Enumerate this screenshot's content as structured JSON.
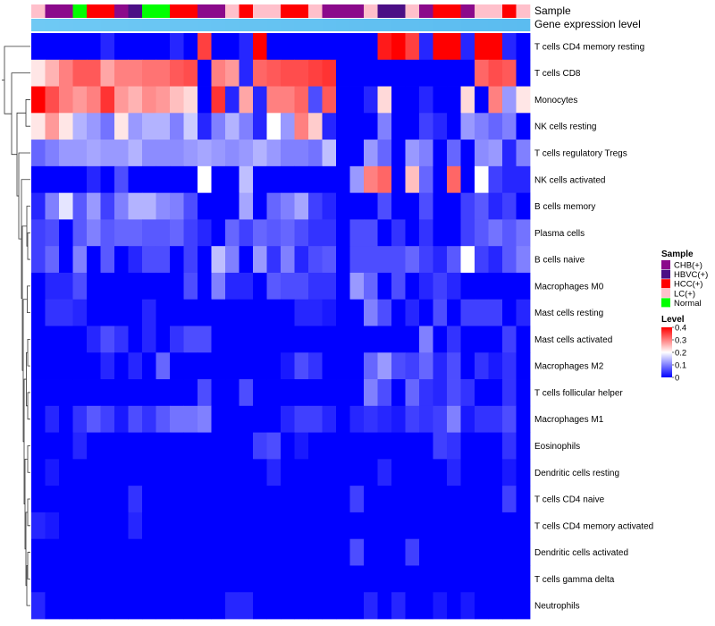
{
  "chart_data": {
    "type": "heatmap",
    "annotation_rows": [
      {
        "label": "Sample",
        "kind": "categorical"
      },
      {
        "label": "Gene expression level",
        "kind": "gradient"
      }
    ],
    "sample_groups": [
      "LC(+)",
      "CHB(+)",
      "CHB(+)",
      "Normal",
      "HCC(+)",
      "HCC(+)",
      "CHB(+)",
      "HBVC(+)",
      "Normal",
      "Normal",
      "HCC(+)",
      "HCC(+)",
      "CHB(+)",
      "CHB(+)",
      "LC(+)",
      "HCC(+)",
      "LC(+)",
      "LC(+)",
      "HCC(+)",
      "HCC(+)",
      "LC(+)",
      "CHB(+)",
      "CHB(+)",
      "CHB(+)",
      "LC(+)",
      "HBVC(+)",
      "HBVC(+)",
      "LC(+)",
      "CHB(+)",
      "HCC(+)",
      "HCC(+)",
      "CHB(+)",
      "LC(+)",
      "LC(+)",
      "HCC(+)",
      "LC(+)"
    ],
    "rows": [
      "T cells CD4 memory resting",
      "T cells CD8",
      "Monocytes",
      "NK cells resting",
      "T cells regulatory  Tregs",
      "NK cells activated",
      "B cells memory",
      "Plasma cells",
      "B cells naive",
      "Macrophages M0",
      "Mast cells resting",
      "Mast cells activated",
      "Macrophages M2",
      "T cells follicular helper",
      "Macrophages M1",
      "Eosinophils",
      "Dendritic cells resting",
      "T cells CD4 naive",
      "T cells CD4 memory activated",
      "Dendritic cells activated",
      "T cells gamma delta",
      "Neutrophils"
    ],
    "values": [
      [
        0,
        0,
        0,
        0,
        0,
        0.03,
        0,
        0,
        0,
        0,
        0.03,
        0,
        0.35,
        0,
        0,
        0.03,
        0.4,
        0,
        0,
        0,
        0,
        0,
        0,
        0,
        0,
        0.38,
        0.4,
        0.35,
        0.03,
        0.4,
        0.4,
        0.03,
        0.4,
        0.4,
        0.03,
        0
      ],
      [
        0.22,
        0.26,
        0.3,
        0.33,
        0.33,
        0.27,
        0.3,
        0.3,
        0.31,
        0.31,
        0.33,
        0.34,
        0,
        0.3,
        0.28,
        0.03,
        0.32,
        0.33,
        0.34,
        0.34,
        0.35,
        0.36,
        0,
        0,
        0,
        0,
        0,
        0,
        0,
        0,
        0,
        0,
        0.32,
        0.34,
        0.33,
        0
      ],
      [
        0.4,
        0.34,
        0.3,
        0.28,
        0.3,
        0.36,
        0.28,
        0.26,
        0.29,
        0.28,
        0.25,
        0.23,
        0,
        0.36,
        0.03,
        0.27,
        0.03,
        0.3,
        0.3,
        0.32,
        0.06,
        0.33,
        0,
        0,
        0.03,
        0.23,
        0,
        0,
        0.03,
        0,
        0,
        0.23,
        0,
        0.3,
        0.12,
        0.22
      ],
      [
        0.22,
        0.28,
        0.22,
        0.14,
        0.12,
        0.09,
        0.22,
        0.12,
        0.14,
        0.14,
        0.1,
        0.16,
        0.03,
        0.1,
        0.14,
        0.1,
        0.03,
        0.2,
        0.12,
        0.3,
        0.24,
        0.03,
        0,
        0,
        0,
        0.1,
        0,
        0,
        0.05,
        0.03,
        0,
        0.12,
        0.1,
        0.08,
        0.1,
        0
      ],
      [
        0.08,
        0.1,
        0.12,
        0.12,
        0.13,
        0.12,
        0.12,
        0.14,
        0.11,
        0.11,
        0.11,
        0.12,
        0.13,
        0.12,
        0.11,
        0.12,
        0.14,
        0.12,
        0.1,
        0.1,
        0.09,
        0.15,
        0,
        0,
        0.12,
        0.08,
        0,
        0.12,
        0.1,
        0,
        0.08,
        0,
        0.11,
        0.12,
        0.03,
        0.1
      ],
      [
        0,
        0,
        0,
        0,
        0.03,
        0,
        0.06,
        0,
        0,
        0,
        0,
        0,
        0.2,
        0,
        0,
        0.15,
        0,
        0,
        0,
        0,
        0,
        0,
        0,
        0.12,
        0.3,
        0.32,
        0,
        0.25,
        0.08,
        0,
        0.32,
        0,
        0.2,
        0.05,
        0.03,
        0.03
      ],
      [
        0.03,
        0.1,
        0.18,
        0.07,
        0.12,
        0.05,
        0.1,
        0.14,
        0.14,
        0.11,
        0.1,
        0.06,
        0,
        0,
        0,
        0.13,
        0,
        0.08,
        0.1,
        0.13,
        0.05,
        0.03,
        0,
        0,
        0,
        0.06,
        0,
        0,
        0.06,
        0,
        0,
        0.05,
        0.07,
        0.03,
        0.05,
        0
      ],
      [
        0.05,
        0.06,
        0,
        0.07,
        0.1,
        0.07,
        0.08,
        0.08,
        0.07,
        0.07,
        0.08,
        0.05,
        0.03,
        0,
        0.08,
        0.05,
        0.08,
        0.07,
        0.08,
        0.06,
        0.04,
        0.04,
        0,
        0.06,
        0.06,
        0,
        0.04,
        0,
        0.04,
        0,
        0,
        0.05,
        0.07,
        0.09,
        0.07,
        0.09
      ],
      [
        0.05,
        0.08,
        0,
        0.1,
        0,
        0.07,
        0,
        0.03,
        0.06,
        0.06,
        0,
        0.05,
        0,
        0.15,
        0.1,
        0,
        0.12,
        0.04,
        0.1,
        0.03,
        0.06,
        0.07,
        0,
        0.06,
        0.06,
        0.06,
        0.06,
        0.08,
        0.05,
        0.03,
        0.07,
        0.2,
        0.05,
        0.03,
        0.07,
        0.1
      ],
      [
        0,
        0.03,
        0.03,
        0.06,
        0,
        0,
        0,
        0,
        0,
        0,
        0,
        0.06,
        0,
        0.1,
        0.03,
        0.03,
        0,
        0.07,
        0.06,
        0.06,
        0.04,
        0.04,
        0,
        0.12,
        0.08,
        0,
        0.06,
        0,
        0.03,
        0.05,
        0.03,
        0,
        0,
        0,
        0,
        0
      ],
      [
        0,
        0.04,
        0.04,
        0.03,
        0,
        0,
        0,
        0,
        0.03,
        0,
        0,
        0,
        0,
        0,
        0,
        0,
        0,
        0,
        0,
        0.03,
        0.03,
        0.02,
        0,
        0,
        0.1,
        0.06,
        0,
        0.03,
        0,
        0.06,
        0,
        0.05,
        0.05,
        0.05,
        0,
        0.03
      ],
      [
        0,
        0,
        0,
        0,
        0.03,
        0.06,
        0.04,
        0,
        0.03,
        0,
        0.04,
        0.06,
        0.06,
        0,
        0,
        0,
        0,
        0,
        0,
        0,
        0,
        0,
        0,
        0,
        0,
        0,
        0,
        0,
        0.1,
        0,
        0.04,
        0,
        0,
        0,
        0.05,
        0
      ],
      [
        0,
        0,
        0,
        0,
        0,
        0.03,
        0,
        0.03,
        0,
        0.08,
        0,
        0,
        0,
        0,
        0,
        0,
        0,
        0,
        0.02,
        0.06,
        0.04,
        0,
        0,
        0,
        0.08,
        0.12,
        0.06,
        0.05,
        0.08,
        0.03,
        0.06,
        0,
        0.04,
        0.02,
        0.04,
        0
      ],
      [
        0,
        0,
        0,
        0,
        0,
        0,
        0,
        0,
        0,
        0,
        0,
        0,
        0.06,
        0,
        0,
        0.06,
        0,
        0,
        0,
        0,
        0,
        0,
        0,
        0,
        0.1,
        0.06,
        0,
        0.08,
        0.04,
        0.03,
        0.06,
        0.04,
        0,
        0,
        0.04,
        0
      ],
      [
        0,
        0.03,
        0,
        0.04,
        0.07,
        0.05,
        0.02,
        0.06,
        0.04,
        0.07,
        0.09,
        0.09,
        0.1,
        0,
        0,
        0,
        0,
        0,
        0.03,
        0.05,
        0.05,
        0.03,
        0,
        0.03,
        0.04,
        0.03,
        0.02,
        0.05,
        0.04,
        0.05,
        0.1,
        0.02,
        0.04,
        0.04,
        0.06,
        0
      ],
      [
        0,
        0,
        0,
        0.03,
        0,
        0,
        0,
        0,
        0,
        0,
        0,
        0,
        0,
        0,
        0,
        0,
        0.05,
        0.06,
        0,
        0.02,
        0,
        0,
        0,
        0,
        0,
        0,
        0,
        0,
        0,
        0.05,
        0.04,
        0,
        0,
        0,
        0.04,
        0
      ],
      [
        0,
        0.02,
        0,
        0,
        0,
        0,
        0,
        0,
        0,
        0,
        0,
        0,
        0,
        0,
        0,
        0,
        0,
        0.03,
        0,
        0,
        0,
        0,
        0,
        0,
        0,
        0.03,
        0,
        0,
        0,
        0,
        0.03,
        0,
        0,
        0,
        0.02,
        0
      ],
      [
        0,
        0,
        0,
        0,
        0,
        0,
        0,
        0.04,
        0,
        0,
        0,
        0,
        0,
        0,
        0,
        0,
        0,
        0,
        0,
        0,
        0,
        0,
        0,
        0.05,
        0,
        0,
        0,
        0,
        0,
        0,
        0,
        0,
        0,
        0,
        0.05,
        0
      ],
      [
        0.03,
        0.02,
        0,
        0,
        0,
        0,
        0,
        0.03,
        0,
        0,
        0,
        0,
        0,
        0,
        0,
        0,
        0,
        0,
        0,
        0,
        0,
        0,
        0,
        0,
        0,
        0,
        0,
        0,
        0,
        0,
        0,
        0,
        0,
        0,
        0,
        0
      ],
      [
        0,
        0,
        0,
        0,
        0,
        0,
        0,
        0,
        0,
        0,
        0,
        0,
        0,
        0,
        0,
        0,
        0,
        0,
        0,
        0,
        0,
        0,
        0,
        0.06,
        0,
        0,
        0,
        0.05,
        0,
        0,
        0,
        0,
        0,
        0,
        0,
        0
      ],
      [
        0,
        0,
        0,
        0,
        0,
        0,
        0,
        0,
        0,
        0,
        0,
        0,
        0,
        0,
        0,
        0,
        0,
        0,
        0,
        0,
        0,
        0,
        0,
        0,
        0,
        0,
        0,
        0,
        0,
        0,
        0,
        0,
        0,
        0,
        0,
        0
      ],
      [
        0.03,
        0,
        0,
        0,
        0,
        0,
        0,
        0,
        0,
        0,
        0,
        0,
        0,
        0,
        0.03,
        0.03,
        0,
        0,
        0,
        0,
        0,
        0,
        0,
        0,
        0.03,
        0,
        0.03,
        0,
        0,
        0.02,
        0,
        0.02,
        0,
        0,
        0,
        0
      ]
    ],
    "color_scale": {
      "low": "#0000ff",
      "mid": "#ffffff",
      "high": "#ff0000",
      "range": [
        0,
        0.4
      ]
    },
    "legend": {
      "sample": {
        "title": "Sample",
        "items": [
          {
            "label": "CHB(+)",
            "color": "#8b0a8b"
          },
          {
            "label": "HBVC(+)",
            "color": "#4b0f85"
          },
          {
            "label": "HCC(+)",
            "color": "#ff0000"
          },
          {
            "label": "LC(+)",
            "color": "#ffc0cb"
          },
          {
            "label": "Normal",
            "color": "#00ff00"
          }
        ]
      },
      "level": {
        "title": "Level",
        "ticks": [
          "0.4",
          "0.3",
          "0.2",
          "0.1",
          "0"
        ],
        "tick_values": [
          0.4,
          0.3,
          0.2,
          0.1,
          0
        ]
      }
    },
    "gene_expression_colors": [
      "#6fc9f4",
      "#5bbcf0"
    ]
  }
}
